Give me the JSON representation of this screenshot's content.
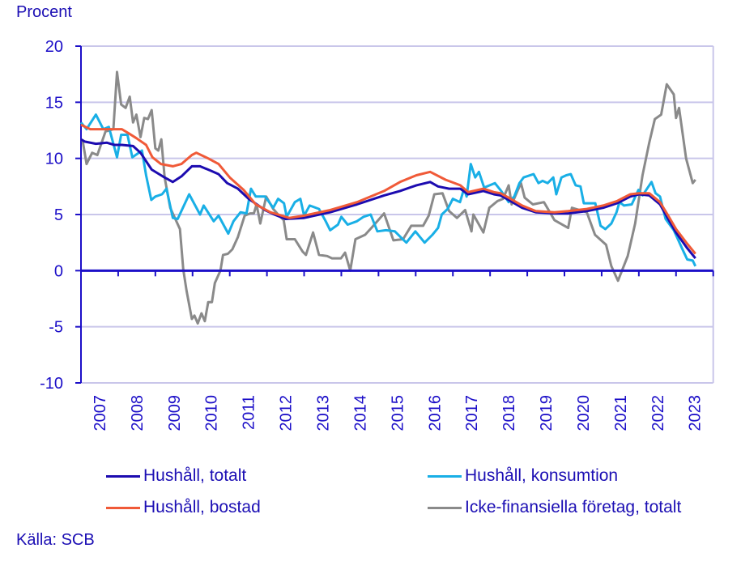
{
  "chart_data": {
    "type": "line",
    "ylabel": "Procent",
    "source": "Källa: SCB",
    "ylim": [
      -10,
      20
    ],
    "yticks": [
      20,
      15,
      10,
      5,
      0,
      -5,
      -10
    ],
    "xlim": [
      2007,
      2024
    ],
    "xtick_labels": [
      "2007",
      "2008",
      "2009",
      "2010",
      "2011",
      "2012",
      "2013",
      "2014",
      "2015",
      "2016",
      "2017",
      "2018",
      "2019",
      "2020",
      "2021",
      "2022",
      "2023"
    ],
    "grid": true,
    "legend_position": "bottom",
    "series": [
      {
        "name": "Hushåll, totalt",
        "color": "#1c0bb0",
        "x": [
          2007.0,
          2007.1,
          2007.4,
          2007.7,
          2007.9,
          2008.1,
          2008.4,
          2008.6,
          2008.9,
          2009.2,
          2009.47,
          2009.7,
          2009.98,
          2010.2,
          2010.49,
          2010.7,
          2010.93,
          2011.22,
          2011.51,
          2011.95,
          2012.2,
          2012.5,
          2013.0,
          2013.7,
          2014.42,
          2015.15,
          2015.58,
          2016.02,
          2016.39,
          2016.6,
          2016.9,
          2017.2,
          2017.41,
          2017.82,
          2018.1,
          2018.28,
          2018.5,
          2018.86,
          2019.23,
          2019.73,
          2020.1,
          2020.6,
          2021.04,
          2021.41,
          2021.77,
          2022.0,
          2022.28,
          2022.57,
          2022.79,
          2023.0,
          2023.3,
          2023.52
        ],
        "y": [
          11.7,
          11.5,
          11.3,
          11.4,
          11.2,
          11.2,
          11.1,
          10.5,
          9.0,
          8.4,
          7.9,
          8.4,
          9.3,
          9.3,
          8.9,
          8.6,
          7.8,
          7.3,
          6.4,
          5.4,
          5.0,
          4.6,
          4.7,
          5.2,
          5.9,
          6.7,
          7.1,
          7.6,
          7.9,
          7.5,
          7.3,
          7.3,
          6.8,
          7.1,
          6.8,
          6.7,
          6.3,
          5.6,
          5.2,
          5.1,
          5.1,
          5.3,
          5.6,
          6.0,
          6.6,
          6.8,
          6.7,
          5.9,
          4.6,
          3.4,
          2.0,
          1.1
        ]
      },
      {
        "name": "Hushåll, konsumtion",
        "color": "#19afe6",
        "x": [
          2007.0,
          2007.15,
          2007.4,
          2007.6,
          2007.75,
          2007.97,
          2008.08,
          2008.25,
          2008.38,
          2008.64,
          2008.75,
          2008.89,
          2009.0,
          2009.18,
          2009.3,
          2009.47,
          2009.6,
          2009.91,
          2010.2,
          2010.3,
          2010.57,
          2010.7,
          2010.96,
          2011.1,
          2011.29,
          2011.45,
          2011.57,
          2011.7,
          2011.95,
          2012.17,
          2012.3,
          2012.46,
          2012.53,
          2012.75,
          2012.9,
          2013.0,
          2013.15,
          2013.4,
          2013.58,
          2013.7,
          2013.91,
          2014.0,
          2014.17,
          2014.42,
          2014.6,
          2014.79,
          2014.97,
          2015.2,
          2015.44,
          2015.62,
          2015.75,
          2015.99,
          2016.24,
          2016.45,
          2016.6,
          2016.7,
          2016.86,
          2017.0,
          2017.19,
          2017.3,
          2017.37,
          2017.48,
          2017.6,
          2017.7,
          2017.84,
          2018.13,
          2018.3,
          2018.5,
          2018.65,
          2018.79,
          2018.9,
          2019.17,
          2019.3,
          2019.41,
          2019.55,
          2019.7,
          2019.78,
          2019.92,
          2020.05,
          2020.17,
          2020.3,
          2020.43,
          2020.52,
          2020.83,
          2020.97,
          2021.1,
          2021.26,
          2021.4,
          2021.48,
          2021.6,
          2021.81,
          2021.99,
          2022.1,
          2022.34,
          2022.45,
          2022.57,
          2022.72,
          2022.94,
          2023.05,
          2023.16,
          2023.3,
          2023.45,
          2023.52
        ],
        "y": [
          13.2,
          12.6,
          13.9,
          12.6,
          12.8,
          10.1,
          12.1,
          12.1,
          10.1,
          10.7,
          8.5,
          6.3,
          6.6,
          6.8,
          7.3,
          4.7,
          4.6,
          6.8,
          5.0,
          5.8,
          4.4,
          4.9,
          3.3,
          4.4,
          5.2,
          5.1,
          7.3,
          6.6,
          6.6,
          5.6,
          6.4,
          6.0,
          4.8,
          6.1,
          6.4,
          4.9,
          5.8,
          5.5,
          4.4,
          3.6,
          4.1,
          4.8,
          4.1,
          4.4,
          4.8,
          5.0,
          3.5,
          3.6,
          3.5,
          2.9,
          2.5,
          3.5,
          2.5,
          3.2,
          3.8,
          5.0,
          5.5,
          6.4,
          6.1,
          7.3,
          6.6,
          9.5,
          8.3,
          8.8,
          7.4,
          7.8,
          7.1,
          6.1,
          6.6,
          7.8,
          8.3,
          8.6,
          7.8,
          8.0,
          7.8,
          8.3,
          6.8,
          8.3,
          8.5,
          8.6,
          7.6,
          7.5,
          6.0,
          6.0,
          4.0,
          3.7,
          4.2,
          5.2,
          6.1,
          5.8,
          5.9,
          7.2,
          6.7,
          7.9,
          6.9,
          6.6,
          4.6,
          3.6,
          2.8,
          2.0,
          1.0,
          0.9,
          0.4
        ]
      },
      {
        "name": "Hushåll, bostad",
        "color": "#f05a38",
        "x": [
          2007.0,
          2007.25,
          2007.6,
          2007.9,
          2008.1,
          2008.3,
          2008.49,
          2008.75,
          2008.92,
          2009.15,
          2009.47,
          2009.7,
          2009.98,
          2010.1,
          2010.42,
          2010.7,
          2011.0,
          2011.37,
          2011.7,
          2012.09,
          2012.4,
          2012.6,
          2013.0,
          2013.7,
          2014.42,
          2015.15,
          2015.58,
          2016.02,
          2016.39,
          2016.8,
          2017.2,
          2017.41,
          2017.82,
          2018.1,
          2018.28,
          2018.5,
          2018.86,
          2019.23,
          2019.73,
          2020.1,
          2020.6,
          2021.04,
          2021.41,
          2021.77,
          2022.0,
          2022.28,
          2022.57,
          2022.79,
          2023.0,
          2023.3,
          2023.52
        ],
        "y": [
          13.0,
          12.6,
          12.6,
          12.6,
          12.6,
          12.2,
          11.8,
          11.2,
          10.1,
          9.5,
          9.3,
          9.5,
          10.3,
          10.5,
          10.0,
          9.5,
          8.3,
          7.2,
          5.9,
          5.2,
          4.9,
          4.7,
          4.9,
          5.4,
          6.1,
          7.1,
          7.9,
          8.5,
          8.8,
          8.1,
          7.6,
          7.0,
          7.3,
          7.0,
          6.9,
          6.5,
          5.8,
          5.3,
          5.2,
          5.3,
          5.5,
          5.8,
          6.2,
          6.8,
          6.9,
          6.9,
          6.1,
          4.9,
          3.7,
          2.4,
          1.5
        ]
      },
      {
        "name": "Icke-finansiella företag, totalt",
        "color": "#8a8a8a",
        "x": [
          2007.04,
          2007.15,
          2007.3,
          2007.44,
          2007.66,
          2007.87,
          2007.97,
          2008.08,
          2008.2,
          2008.31,
          2008.4,
          2008.49,
          2008.6,
          2008.7,
          2008.8,
          2008.9,
          2009.0,
          2009.08,
          2009.16,
          2009.25,
          2009.4,
          2009.66,
          2009.75,
          2009.84,
          2009.98,
          2010.05,
          2010.14,
          2010.24,
          2010.33,
          2010.42,
          2010.52,
          2010.6,
          2010.75,
          2010.82,
          2010.95,
          2011.07,
          2011.22,
          2011.4,
          2011.55,
          2011.65,
          2011.72,
          2011.82,
          2011.98,
          2012.17,
          2012.3,
          2012.45,
          2012.53,
          2012.75,
          2012.96,
          2013.05,
          2013.24,
          2013.4,
          2013.62,
          2013.75,
          2013.99,
          2014.1,
          2014.24,
          2014.38,
          2014.64,
          2014.86,
          2015.15,
          2015.4,
          2015.66,
          2015.88,
          2016.2,
          2016.35,
          2016.5,
          2016.72,
          2016.9,
          2017.11,
          2017.33,
          2017.5,
          2017.55,
          2017.82,
          2017.98,
          2018.2,
          2018.35,
          2018.5,
          2018.58,
          2018.83,
          2018.93,
          2019.15,
          2019.45,
          2019.73,
          2020.1,
          2020.2,
          2020.6,
          2020.82,
          2021.12,
          2021.26,
          2021.44,
          2021.7,
          2021.9,
          2022.1,
          2022.28,
          2022.43,
          2022.6,
          2022.75,
          2022.94,
          2023.0,
          2023.08,
          2023.27,
          2023.45,
          2023.52
        ],
        "y": [
          11.7,
          9.5,
          10.5,
          10.3,
          12.4,
          12.6,
          17.7,
          14.8,
          14.5,
          15.5,
          13.2,
          13.9,
          11.9,
          13.6,
          13.5,
          14.3,
          10.9,
          10.7,
          11.7,
          8.3,
          5.6,
          3.7,
          0.1,
          -1.8,
          -4.3,
          -4.0,
          -4.7,
          -3.8,
          -4.5,
          -2.8,
          -2.8,
          -1.1,
          0.0,
          1.4,
          1.5,
          1.9,
          3.0,
          4.9,
          5.1,
          5.1,
          5.9,
          4.2,
          6.6,
          5.5,
          5.0,
          4.5,
          2.8,
          2.8,
          1.7,
          1.4,
          3.4,
          1.4,
          1.3,
          1.1,
          1.1,
          1.6,
          0.0,
          2.8,
          3.2,
          4.0,
          5.1,
          2.7,
          2.8,
          4.0,
          4.0,
          4.9,
          6.8,
          6.9,
          5.3,
          4.7,
          5.4,
          3.5,
          5.0,
          3.4,
          5.6,
          6.2,
          6.4,
          7.6,
          5.9,
          7.8,
          6.5,
          5.9,
          6.1,
          4.5,
          3.8,
          5.6,
          5.2,
          3.2,
          2.3,
          0.4,
          -0.9,
          1.3,
          4.2,
          8.5,
          11.4,
          13.5,
          13.9,
          16.6,
          15.7,
          13.6,
          14.5,
          10.0,
          7.8,
          8.1
        ]
      }
    ]
  }
}
